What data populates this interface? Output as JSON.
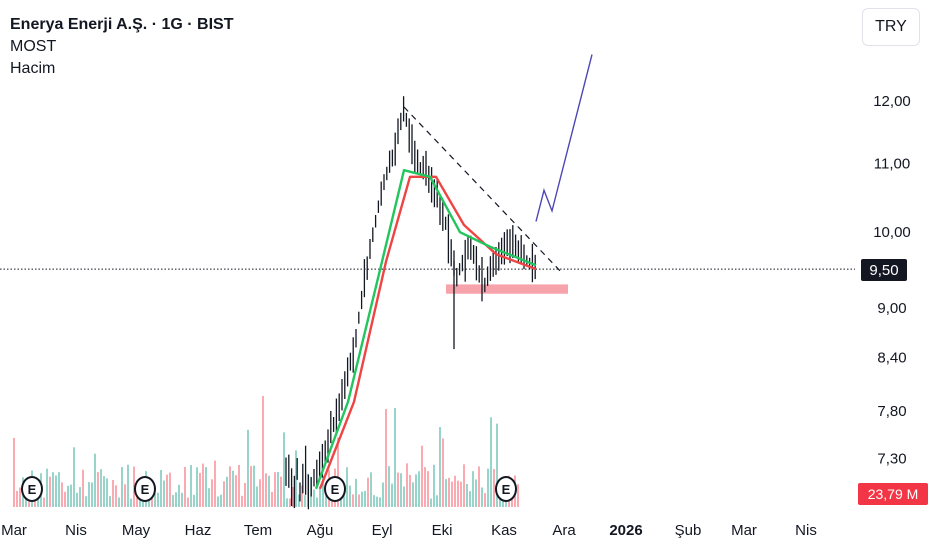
{
  "legend": {
    "title": "Enerya Enerji A.Ş. · 1G · BIST",
    "indicator_1": "MOST",
    "indicator_2": "Hacim"
  },
  "currency": "TRY",
  "last_price_label": "9,50",
  "volume_label": "23,79 M",
  "earnings_marker": "E",
  "colors": {
    "up": "#089981",
    "down": "#f23645",
    "candle": "#131722",
    "most_fast": "#22c55e",
    "most_stop": "#ef4444",
    "projection": "#4f46b5",
    "support_zone": "#f7a3ab"
  },
  "chart_data": {
    "type": "line",
    "x_axis_labels": [
      "Mar",
      "Nis",
      "May",
      "Haz",
      "Tem",
      "Ağu",
      "Eyl",
      "Eki",
      "Kas",
      "Ara",
      "2026",
      "Şub",
      "Mar",
      "Nis"
    ],
    "y_axis_labels": [
      "12,00",
      "11,00",
      "10,00",
      "9,00",
      "8,40",
      "7,80",
      "7,30"
    ],
    "ylim": [
      7.0,
      12.8
    ],
    "log_scale": true,
    "last_price": 9.5,
    "approx_close_series": [
      {
        "date": "2025-07-28",
        "close": 7.05
      },
      {
        "date": "2025-08-04",
        "close": 7.4
      },
      {
        "date": "2025-08-11",
        "close": 7.9
      },
      {
        "date": "2025-08-18",
        "close": 8.5
      },
      {
        "date": "2025-08-25",
        "close": 9.6
      },
      {
        "date": "2025-09-01",
        "close": 10.6
      },
      {
        "date": "2025-09-08",
        "close": 11.3
      },
      {
        "date": "2025-09-12",
        "close": 11.9
      },
      {
        "date": "2025-09-18",
        "close": 11.0
      },
      {
        "date": "2025-09-25",
        "close": 10.8
      },
      {
        "date": "2025-10-02",
        "close": 10.2
      },
      {
        "date": "2025-10-08",
        "close": 9.4
      },
      {
        "date": "2025-10-15",
        "close": 9.8
      },
      {
        "date": "2025-10-22",
        "close": 9.3
      },
      {
        "date": "2025-10-29",
        "close": 9.7
      },
      {
        "date": "2025-11-05",
        "close": 9.9
      },
      {
        "date": "2025-11-12",
        "close": 9.6
      },
      {
        "date": "2025-11-17",
        "close": 9.5
      }
    ],
    "series": [
      {
        "points": [
          {
            "date": "2025-07-30",
            "value": 7.0
          },
          {
            "date": "2025-08-15",
            "value": 7.9
          },
          {
            "date": "2025-09-01",
            "value": 9.6
          },
          {
            "date": "2025-09-12",
            "value": 10.9
          },
          {
            "date": "2025-09-25",
            "value": 10.8
          },
          {
            "date": "2025-10-10",
            "value": 10.0
          },
          {
            "date": "2025-10-25",
            "value": 9.8
          },
          {
            "date": "2025-11-17",
            "value": 9.55
          }
        ]
      },
      {
        "points": [
          {
            "date": "2025-08-01",
            "value": 7.0
          },
          {
            "date": "2025-08-18",
            "value": 7.9
          },
          {
            "date": "2025-09-03",
            "value": 9.6
          },
          {
            "date": "2025-09-15",
            "value": 10.8
          },
          {
            "date": "2025-09-28",
            "value": 10.8
          },
          {
            "date": "2025-10-12",
            "value": 10.1
          },
          {
            "date": "2025-10-28",
            "value": 9.7
          },
          {
            "date": "2025-11-17",
            "value": 9.5
          }
        ]
      }
    ],
    "drawings": {
      "trendline": {
        "start": {
          "date": "2025-09-12",
          "value": 11.9
        },
        "end": {
          "date": "2025-11-30",
          "value": 9.45
        }
      },
      "support_zone": {
        "from": "2025-10-03",
        "to": "2025-12-03",
        "low": 9.18,
        "high": 9.3
      },
      "projection": [
        {
          "date": "2025-11-17",
          "value": 10.15
        },
        {
          "date": "2025-11-21",
          "value": 10.6
        },
        {
          "date": "2025-11-25",
          "value": 10.3
        },
        {
          "date": "2025-12-15",
          "value": 12.8
        }
      ]
    }
  }
}
